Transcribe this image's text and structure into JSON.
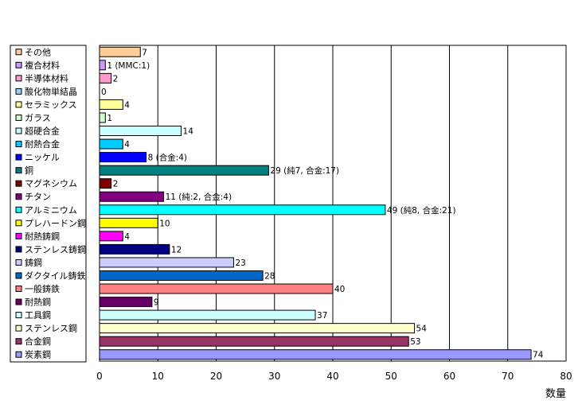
{
  "chart_data": {
    "type": "bar",
    "orientation": "horizontal",
    "categories": [
      "その他",
      "複合材料",
      "半導体材料",
      "酸化物単結晶",
      "セラミックス",
      "ガラス",
      "超硬合金",
      "耐熱合金",
      "ニッケル",
      "銅",
      "マグネシウム",
      "チタン",
      "アルミニウム",
      "プレハードン鋼",
      "耐熱鋳鋼",
      "ステンレス鋳鋼",
      "鋳鋼",
      "ダクタイル鋳鉄",
      "一般鋳鉄",
      "耐熱鋼",
      "工具鋼",
      "ステンレス鋼",
      "合金鋼",
      "炭素鋼"
    ],
    "values": [
      7,
      1,
      2,
      0,
      4,
      1,
      14,
      4,
      8,
      29,
      2,
      11,
      49,
      10,
      4,
      12,
      23,
      28,
      40,
      9,
      37,
      54,
      53,
      74
    ],
    "data_labels": [
      "7",
      "1 (MMC:1)",
      "2",
      "0",
      "4",
      "1",
      "14",
      "4",
      "8 (合金:4)",
      "29 (純7, 合金:17)",
      "2",
      "11 (純:2, 合金:4)",
      "49 (純8, 合金:21)",
      "10",
      "4",
      "12",
      "23",
      "28",
      "40",
      "9",
      "37",
      "54",
      "53",
      "74"
    ],
    "colors": [
      "#FFCC99",
      "#CC99FF",
      "#FF99CC",
      "#99CCFF",
      "#FFFF99",
      "#CCFFCC",
      "#CCFFFF",
      "#00CCFF",
      "#0000FF",
      "#008080",
      "#800000",
      "#800080",
      "#00FFFF",
      "#FFFF00",
      "#FF00FF",
      "#000080",
      "#CCCCFF",
      "#0066CC",
      "#FF8080",
      "#660066",
      "#CCFFFF",
      "#FFFFCC",
      "#993366",
      "#9999FF"
    ],
    "x_ticks": [
      "0",
      "10",
      "20",
      "30",
      "40",
      "50",
      "60",
      "70",
      "80"
    ],
    "xlim": [
      0,
      80
    ],
    "xlabel": "数量",
    "ylabel": "",
    "title": "",
    "grid": true,
    "legend": "left"
  }
}
